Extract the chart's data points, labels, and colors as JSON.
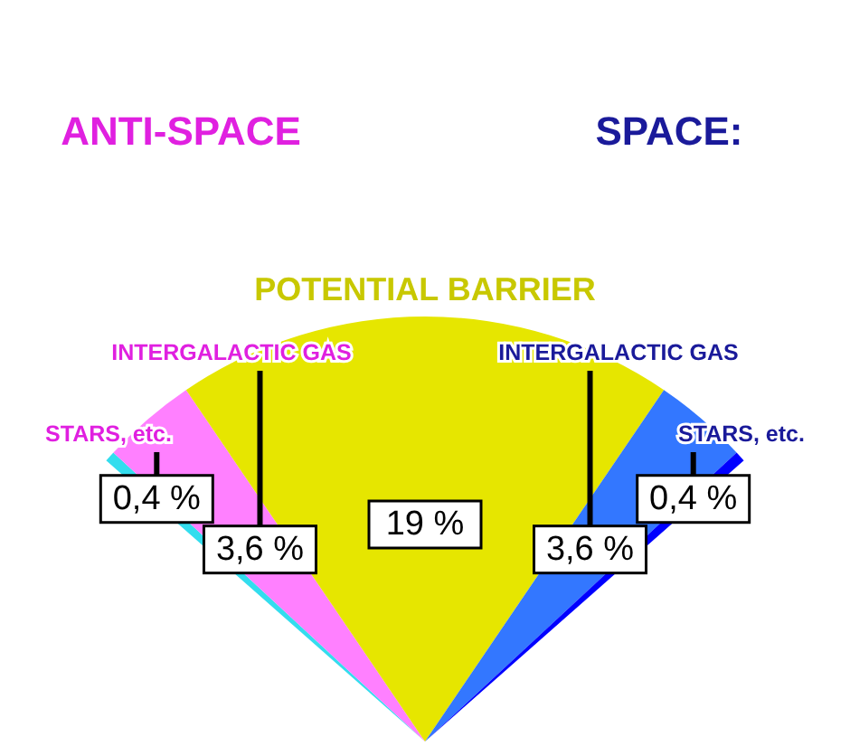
{
  "chart_data": {
    "type": "pie",
    "categories": [
      "STARS, etc.",
      "INTERGALACTIC GAS",
      "POTENTIAL BARRIER",
      "INTERGALACTIC GAS",
      "STARS, etc."
    ],
    "values": [
      0.4,
      3.6,
      19,
      3.6,
      0.4
    ],
    "value_labels": [
      "0,4 %",
      "3,6 %",
      "19 %",
      "3,6 %",
      "0,4 %"
    ],
    "colors": [
      "#33ddee",
      "#ff80ff",
      "#e6e600",
      "#3377ff",
      "#0000ff"
    ],
    "annotations": [
      "ANTI-SPACE",
      "SPACE:"
    ]
  }
}
